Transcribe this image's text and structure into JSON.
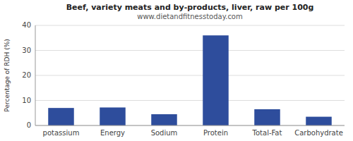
{
  "chart_data": {
    "type": "bar",
    "title": "Beef, variety meats and by-products, liver, raw per 100g",
    "subtitle": "www.dietandfitnesstoday.com",
    "ylabel": "Percentage of RDH (%)",
    "categories": [
      "potassium",
      "Energy",
      "Sodium",
      "Protein",
      "Total-Fat",
      "Carbohydrate"
    ],
    "values": [
      7.0,
      7.2,
      4.5,
      36.0,
      6.5,
      3.5
    ],
    "color": "#2e4d9c",
    "ylim": [
      0,
      40
    ],
    "yticks": [
      0,
      10,
      20,
      30,
      40
    ],
    "grid": true
  }
}
